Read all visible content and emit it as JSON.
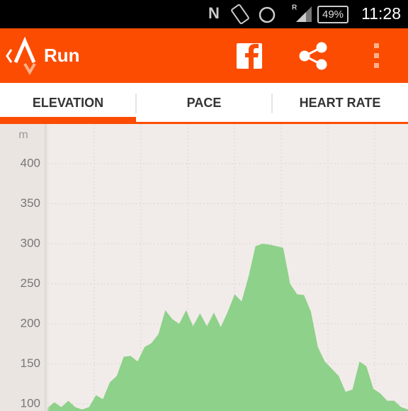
{
  "status_bar": {
    "roaming": "R",
    "battery": "49%",
    "time": "11:28"
  },
  "app_bar": {
    "title": "Run"
  },
  "tabs": [
    "ELEVATION",
    "PACE",
    "HEART RATE"
  ],
  "chart_data": {
    "type": "area",
    "y_unit": "m",
    "color": "#8ed18a",
    "grid": true,
    "values": [
      95,
      102,
      96,
      104,
      96,
      93,
      96,
      111,
      106,
      127,
      135,
      159,
      160,
      153,
      171,
      176,
      187,
      217,
      206,
      200,
      217,
      197,
      213,
      197,
      214,
      196,
      215,
      237,
      228,
      259,
      297,
      300,
      299,
      297,
      295,
      250,
      237,
      236,
      215,
      171,
      153,
      144,
      135,
      115,
      118,
      153,
      147,
      119,
      113,
      104,
      104,
      96,
      93
    ],
    "ylim": [
      90,
      450
    ],
    "yticks": [
      100,
      150,
      200,
      250,
      300,
      350,
      400
    ]
  }
}
